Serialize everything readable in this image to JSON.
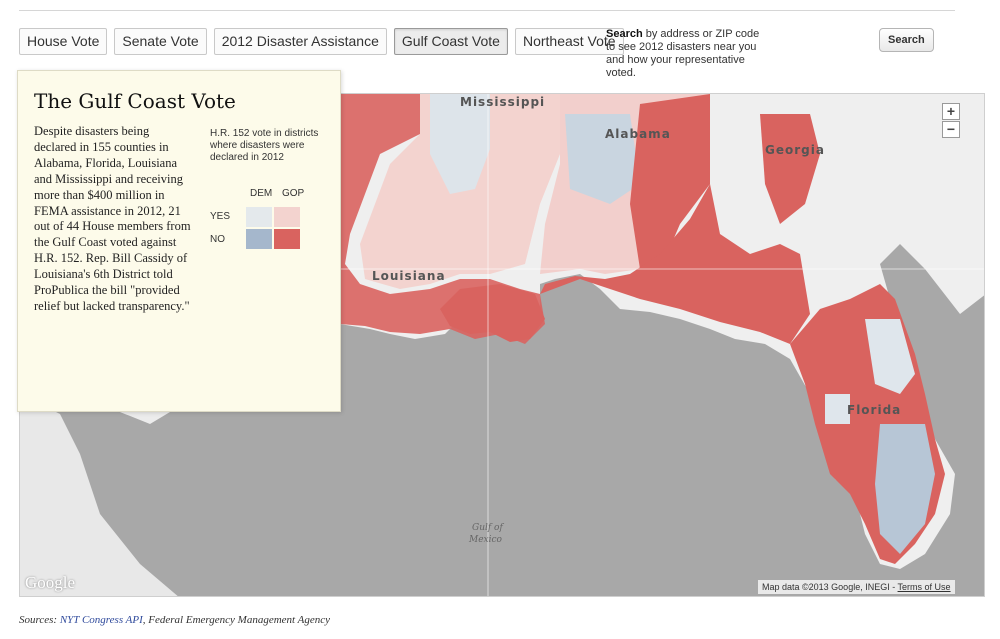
{
  "tabs": [
    {
      "label": "House Vote"
    },
    {
      "label": "Senate Vote"
    },
    {
      "label": "2012 Disaster Assistance"
    },
    {
      "label": "Gulf Coast Vote",
      "active": true
    },
    {
      "label": "Northeast Vote"
    }
  ],
  "search": {
    "help_bold": "Search",
    "help_text": " by address or ZIP code to see 2012 disasters near you and how your representative voted.",
    "button_label": "Search"
  },
  "map": {
    "state_labels": [
      "Mississippi",
      "Alabama",
      "Georgia",
      "Louisiana",
      "Florida"
    ],
    "water_label_1": "Gulf of",
    "water_label_2": "Mexico",
    "zoom_in": "+",
    "zoom_out": "−",
    "attribution": "Map data ©2013 Google, INEGI - ",
    "terms_link": "Terms of Use",
    "logo": "Google"
  },
  "info": {
    "title": "The Gulf Coast Vote",
    "body": "Despite disasters being declared in 155 counties in Alabama, Florida, Louisiana and Mississippi and receiving more than $400 million in FEMA assistance in 2012, 21 out of 44 House members from the Gulf Coast voted against H.R. 152. Rep. Bill Cassidy of Louisiana's 6th District told ProPublica the bill \"provided relief but lacked transparency.\""
  },
  "legend": {
    "title": "H.R. 152 vote in districts where disasters were declared in 2012",
    "col_dem": "DEM",
    "col_gop": "GOP",
    "row_yes": "YES",
    "row_no": "NO",
    "colors": {
      "yes_dem": "#e4e9ec",
      "yes_gop": "#f3d3cf",
      "no_dem": "#a5b7cc",
      "no_gop": "#d9635f"
    }
  },
  "sources": {
    "prefix": "Sources: ",
    "link": "NYT Congress API",
    "rest": ", Federal Emergency Management Agency"
  }
}
